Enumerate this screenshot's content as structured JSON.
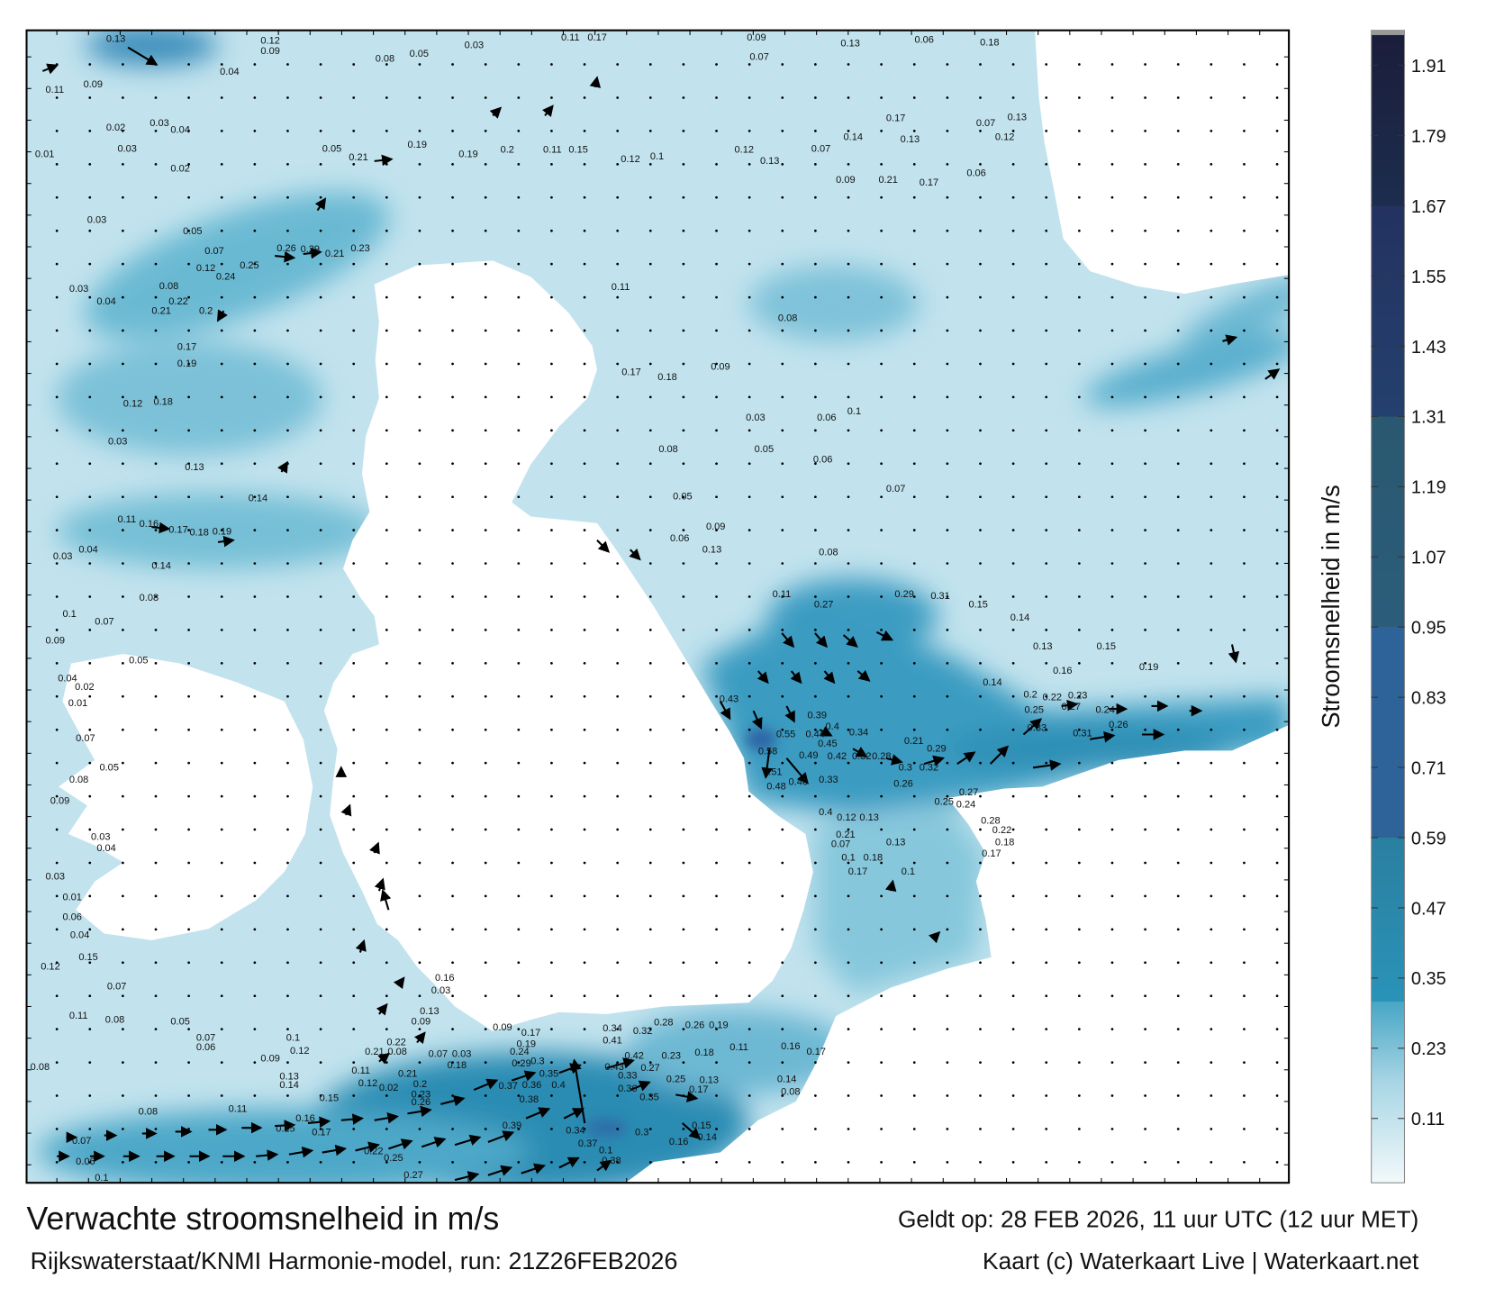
{
  "title": "Verwachte stroomsnelheid in m/s",
  "valid_time": "Geldt op: 28 FEB 2026, 11 uur UTC (12 uur MET)",
  "model_run": "Rijkswaterstaat/KNMI Harmonie-model, run: 21Z26FEB2026",
  "credit": "Kaart (c) Waterkaart Live | Waterkaart.net",
  "colorbar": {
    "label": "Stroomsnelheid in m/s",
    "unit": "m/s",
    "range": [
      0,
      1.97
    ],
    "ticks": [
      "1.91",
      "1.79",
      "1.67",
      "1.55",
      "1.43",
      "1.31",
      "1.19",
      "1.07",
      "0.95",
      "0.83",
      "0.71",
      "0.59",
      "0.47",
      "0.35",
      "0.23",
      "0.11"
    ],
    "tick_values": [
      1.91,
      1.79,
      1.67,
      1.55,
      1.43,
      1.31,
      1.19,
      1.07,
      0.95,
      0.83,
      0.71,
      0.59,
      0.47,
      0.35,
      0.23,
      0.11
    ],
    "stops": [
      {
        "value": 0.0,
        "color": "#f2f9fb"
      },
      {
        "value": 0.17,
        "color": "#a9d6e5"
      },
      {
        "value": 0.31,
        "color": "#47a6c6"
      },
      {
        "value": 0.31,
        "color": "#2a93b8"
      },
      {
        "value": 0.59,
        "color": "#2a7fa0"
      },
      {
        "value": 0.59,
        "color": "#2e6399"
      },
      {
        "value": 0.95,
        "color": "#2e6399"
      },
      {
        "value": 0.95,
        "color": "#2b5d7a"
      },
      {
        "value": 1.31,
        "color": "#2a5870"
      },
      {
        "value": 1.31,
        "color": "#24406e"
      },
      {
        "value": 1.67,
        "color": "#233260"
      },
      {
        "value": 1.67,
        "color": "#1c2d4e"
      },
      {
        "value": 1.97,
        "color": "#1b1d3a"
      }
    ]
  },
  "colors": {
    "land": "#ffffff",
    "sea_base": "#c2e3ee",
    "arrow": "#000000"
  },
  "map": {
    "labels": [
      "0.13",
      "0.12",
      "0.09",
      "0.11",
      "0.17",
      "0.03",
      "0.08",
      "0.05",
      "0.04",
      "0.09",
      "0.07",
      "0.13",
      "0.06",
      "0.18",
      "0.11",
      "0.09",
      "0.02",
      "0.03",
      "0.04",
      "0.01",
      "0.03",
      "0.02",
      "0.05",
      "0.21",
      "0.19",
      "0.19",
      "0.2",
      "0.11",
      "0.15",
      "0.12",
      "0.1",
      "0.12",
      "0.13",
      "0.07",
      "0.14",
      "0.17",
      "0.13",
      "0.07",
      "0.13",
      "0.12",
      "0.09",
      "0.21",
      "0.17",
      "0.06",
      "0.03",
      "0.05",
      "0.07",
      "0.12",
      "0.24",
      "0.25",
      "0.26",
      "0.29",
      "0.21",
      "0.23",
      "0.08",
      "0.22",
      "0.03",
      "0.04",
      "0.21",
      "0.2",
      "0.17",
      "0.19",
      "0.12",
      "0.18",
      "0.03",
      "0.13",
      "0.14",
      "0.11",
      "0.16",
      "0.17",
      "0.18",
      "0.19",
      "0.03",
      "0.04",
      "0.14",
      "0.08",
      "0.1",
      "0.07",
      "0.09",
      "0.05",
      "0.04",
      "0.02",
      "0.01",
      "0.07",
      "0.05",
      "0.08",
      "0.09",
      "0.03",
      "0.04",
      "0.03",
      "0.01",
      "0.06",
      "0.04",
      "0.15",
      "0.12",
      "0.07",
      "0.11",
      "0.08",
      "0.05",
      "0.08",
      "0.08",
      "0.07",
      "0.06",
      "0.1",
      "0.11",
      "0.08",
      "0.17",
      "0.18",
      "0.09",
      "0.03",
      "0.06",
      "0.1",
      "0.08",
      "0.05",
      "0.06",
      "0.07",
      "0.05",
      "0.09",
      "0.06",
      "0.13",
      "0.08",
      "0.11",
      "0.27",
      "0.29",
      "0.31",
      "0.15",
      "0.14",
      "0.13",
      "0.15",
      "0.19",
      "0.16",
      "0.14",
      "0.43",
      "0.55",
      "0.58",
      "0.44",
      "0.4",
      "0.34",
      "0.39",
      "0.45",
      "0.49",
      "0.42",
      "0.32",
      "0.28",
      "0.33",
      "0.3",
      "0.32",
      "0.31",
      "0.33",
      "0.26",
      "0.25",
      "0.27",
      "0.24",
      "0.2",
      "0.22",
      "0.23",
      "0.29",
      "0.21",
      "0.26",
      "0.27",
      "0.25",
      "0.24",
      "0.48",
      "0.51",
      "0.46",
      "0.4",
      "0.12",
      "0.13",
      "0.21",
      "0.07",
      "0.28",
      "0.22",
      "0.18",
      "0.17",
      "0.1",
      "0.18",
      "0.17",
      "0.13",
      "0.1",
      "0.42",
      "0.43",
      "0.33",
      "0.36",
      "0.35",
      "0.27",
      "0.23",
      "0.25",
      "0.37",
      "0.36",
      "0.38",
      "0.35",
      "0.4",
      "0.39",
      "0.34",
      "0.37",
      "0.1",
      "0.38",
      "0.3",
      "0.16",
      "0.14",
      "0.15",
      "0.41",
      "0.34",
      "0.32",
      "0.28",
      "0.26",
      "0.19",
      "0.18",
      "0.11",
      "0.16",
      "0.17",
      "0.14",
      "0.08",
      "0.13",
      "0.17",
      "0.29",
      "0.24",
      "0.3",
      "0.19",
      "0.17",
      "0.09",
      "0.18",
      "0.07",
      "0.03",
      "0.23",
      "0.26",
      "0.2",
      "0.21",
      "0.02",
      "0.12",
      "0.11",
      "0.15",
      "0.21",
      "0.08",
      "0.22",
      "0.13",
      "0.09",
      "0.16",
      "0.03",
      "0.22",
      "0.25",
      "0.27",
      "0.17",
      "0.16",
      "0.15",
      "0.11",
      "0.13",
      "0.14",
      "0.12",
      "0.1",
      "0.09",
      "0.07",
      "0.06"
    ]
  }
}
